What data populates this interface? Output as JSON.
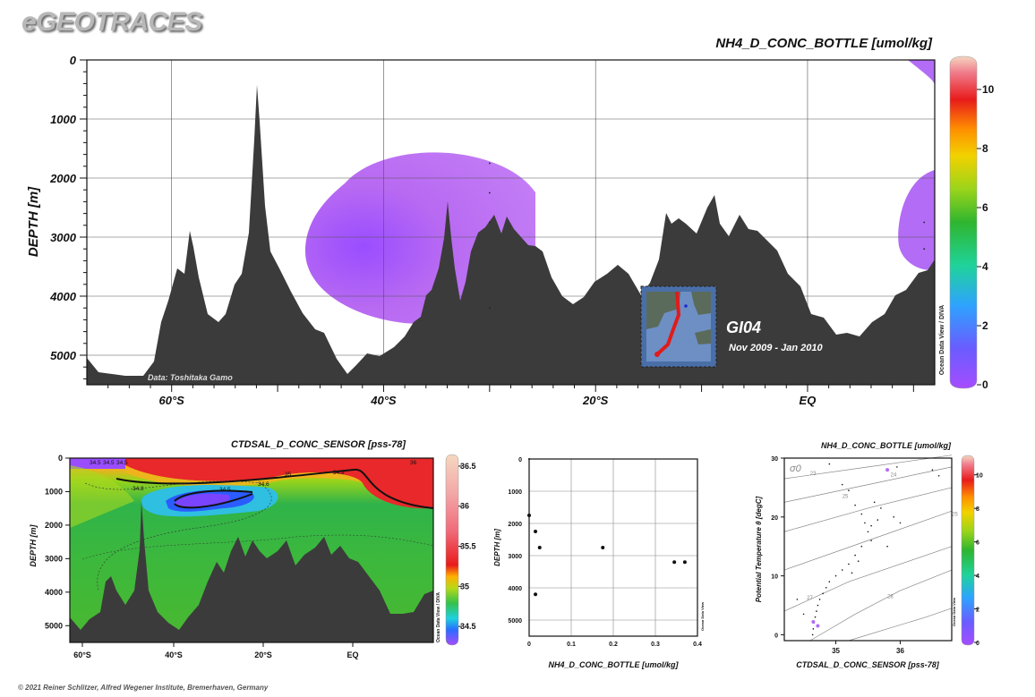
{
  "header": {
    "brand": "eGEOTRACES",
    "copyright": "© 2021 Reiner Schlitzer, Alfred Wegener Institute, Bremerhaven, Germany"
  },
  "chart_data": [
    {
      "type": "heatmap",
      "title": "NH4_D_CONC_BOTTLE [umol/kg]",
      "ylabel": "DEPTH [m]",
      "x_ticks": [
        "60°S",
        "40°S",
        "20°S",
        "EQ"
      ],
      "y_ticks": [
        "0",
        "1000",
        "2000",
        "3000",
        "4000",
        "5000"
      ],
      "ylim": [
        0,
        5500
      ],
      "xlim": [
        -68,
        12
      ],
      "colorbar": {
        "ticks": [
          "0",
          "2",
          "4",
          "6",
          "8",
          "10"
        ],
        "range": [
          0,
          11
        ],
        "label": "Ocean Data View / DIVA"
      },
      "credit": "Data: Toshitaka Gamo",
      "section": "GI04",
      "period": "Nov 2009 - Jan 2010",
      "samples": [
        {
          "lat": -30,
          "depth": 1750
        },
        {
          "lat": -30,
          "depth": 2250
        },
        {
          "lat": -30,
          "depth": 2750
        },
        {
          "lat": -30,
          "depth": 4200
        },
        {
          "lat": 11,
          "depth": 2750
        },
        {
          "lat": 11,
          "depth": 3200
        }
      ],
      "colors": {
        "low": "#a64dff",
        "high": "#f5dcc8"
      }
    },
    {
      "type": "heatmap",
      "title": "CTDSAL_D_CONC_SENSOR [pss-78]",
      "ylabel": "DEPTH [m]",
      "x_ticks": [
        "60°S",
        "40°S",
        "20°S",
        "EQ"
      ],
      "y_ticks": [
        "0",
        "1000",
        "2000",
        "3000",
        "4000",
        "5000"
      ],
      "ylim": [
        0,
        5500
      ],
      "colorbar": {
        "ticks": [
          "34.5",
          "35",
          "35.5",
          "36",
          "36.5"
        ],
        "range": [
          34.3,
          36.6
        ],
        "label": "Ocean Data View / DIVA"
      },
      "contour_labels": [
        "34.5",
        "34.5",
        "34.5",
        "35",
        "34.9",
        "36",
        "34.8",
        "34.5",
        "34.6"
      ]
    },
    {
      "type": "scatter",
      "xlabel": "NH4_D_CONC_BOTTLE [umol/kg]",
      "ylabel": "DEPTH [m]",
      "x_ticks": [
        "0",
        "0.1",
        "0.2",
        "0.3",
        "0.4"
      ],
      "y_ticks": [
        "0",
        "1000",
        "2000",
        "3000",
        "4000",
        "5000"
      ],
      "xlim": [
        0,
        0.4
      ],
      "ylim": [
        0,
        5500
      ],
      "side_label": "Ocean Data View",
      "points": [
        {
          "x": 0.0,
          "y": 1750
        },
        {
          "x": 0.015,
          "y": 2250
        },
        {
          "x": 0.025,
          "y": 2750
        },
        {
          "x": 0.175,
          "y": 2750
        },
        {
          "x": 0.015,
          "y": 4200
        },
        {
          "x": 0.345,
          "y": 3200
        },
        {
          "x": 0.37,
          "y": 3200
        },
        {
          "x": 0.0,
          "y": 0
        }
      ]
    },
    {
      "type": "scatter",
      "title": "NH4_D_CONC_BOTTLE [umol/kg]",
      "xlabel": "CTDSAL_D_CONC_SENSOR [pss-78]",
      "ylabel": "Potential Temperature θ [degC]",
      "x_ticks": [
        "35",
        "36"
      ],
      "y_ticks": [
        "0",
        "10",
        "20",
        "30"
      ],
      "xlim": [
        34.2,
        36.8
      ],
      "ylim": [
        -1,
        30
      ],
      "isopycnal_symbol": "σ0",
      "isopycnal_labels": [
        "23",
        "24",
        "25",
        "25",
        "27",
        "28"
      ],
      "colorbar": {
        "ticks": [
          "0",
          "2",
          "4",
          "6",
          "8",
          "10"
        ],
        "range": [
          0,
          11
        ],
        "label": "Ocean Data View"
      },
      "colored_points": [
        {
          "x": 35.8,
          "y": 28,
          "value": 1.2
        },
        {
          "x": 34.65,
          "y": 2.2,
          "value": 0.8
        },
        {
          "x": 34.72,
          "y": 1.5,
          "value": 0.3
        }
      ]
    }
  ]
}
